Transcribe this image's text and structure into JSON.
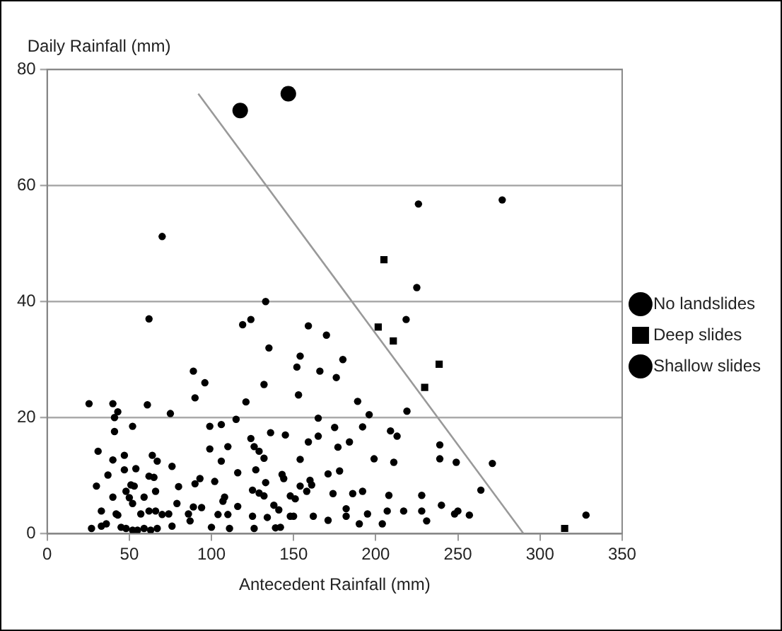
{
  "chart_data": {
    "type": "scatter",
    "xlabel": "Antecedent Rainfall (mm)",
    "ylabel": "Daily Rainfall (mm)",
    "xlim": [
      0,
      350
    ],
    "xticks": [
      0,
      50,
      100,
      150,
      200,
      250,
      300,
      350
    ],
    "ylim": [
      0,
      80
    ],
    "yticks": [
      0,
      20,
      40,
      60,
      80
    ],
    "grid": "y",
    "legend": "right",
    "series": [
      {
        "name": "No landslides",
        "color": "#000000",
        "marker": "circle",
        "x": [
          62,
          133,
          119,
          124,
          135,
          89,
          96,
          132,
          90,
          121,
          25.5,
          40,
          61,
          43,
          41,
          75,
          52,
          41,
          99,
          106,
          115,
          136,
          145,
          31,
          99,
          110,
          124,
          126,
          129,
          132,
          40,
          47,
          64,
          67,
          106,
          154,
          76,
          127,
          37,
          47,
          54,
          62,
          65,
          90,
          93,
          116,
          143,
          144,
          30,
          51,
          53,
          80,
          102,
          133,
          40,
          48,
          50,
          59,
          66,
          108,
          107,
          125,
          129,
          132,
          154,
          151,
          33,
          42,
          52,
          57,
          62,
          66,
          70,
          74,
          79,
          86,
          89,
          94,
          104,
          110,
          116,
          125,
          134,
          138,
          141,
          150,
          27,
          33,
          36,
          43,
          45,
          48,
          52,
          55,
          59,
          63,
          67,
          76,
          87,
          100,
          111,
          126,
          142,
          225,
          218.5,
          159,
          170,
          154,
          152,
          166,
          176,
          180,
          153,
          189,
          219,
          196,
          192,
          165,
          165,
          175,
          159,
          209,
          213,
          184,
          177,
          239,
          199,
          211,
          239,
          249,
          271,
          171,
          178,
          160,
          161,
          148,
          158,
          174,
          186,
          192,
          208,
          228,
          264,
          139,
          148,
          162,
          171,
          182,
          182,
          190,
          195,
          204,
          207,
          217,
          228,
          231,
          240,
          248,
          250,
          257,
          328,
          70,
          226,
          277
        ],
        "values": [
          37,
          40,
          36,
          36.9,
          32,
          28,
          26,
          25.7,
          23.4,
          22.7,
          22.4,
          22.4,
          22.2,
          21,
          20,
          20.7,
          18.5,
          17.6,
          18.5,
          18.8,
          19.7,
          17.4,
          17,
          14.2,
          14.6,
          15,
          16.4,
          15,
          14.2,
          13,
          12.7,
          13.5,
          13.5,
          12.5,
          12.5,
          12.8,
          11.6,
          11,
          10.1,
          11,
          11.2,
          9.9,
          9.7,
          8.6,
          9.5,
          10.5,
          10.2,
          9.5,
          8.2,
          8.4,
          8.2,
          8.1,
          9,
          8.8,
          6.3,
          7.3,
          6.2,
          6.3,
          7.3,
          6.3,
          5.6,
          7.5,
          7,
          6.5,
          8.2,
          6,
          3.9,
          3.4,
          5.2,
          3.4,
          3.9,
          3.9,
          3.3,
          3.4,
          5.2,
          3.4,
          4.6,
          4.5,
          3.3,
          3.3,
          4.7,
          3,
          2.8,
          4.9,
          4.1,
          3,
          0.9,
          1.3,
          1.7,
          3.2,
          1.1,
          0.9,
          0.6,
          0.6,
          0.9,
          0.6,
          0.9,
          1.3,
          2.2,
          1.1,
          0.9,
          0.9,
          1.1,
          42.4,
          36.9,
          35.8,
          34.2,
          30.6,
          28.7,
          28,
          26.9,
          30,
          23.9,
          22.8,
          21.1,
          20.5,
          18.4,
          19.9,
          16.8,
          18.3,
          15.8,
          17.7,
          16.8,
          15.8,
          14.9,
          15.3,
          12.9,
          12.3,
          12.9,
          12.3,
          12.1,
          10.3,
          10.8,
          9.2,
          8.4,
          6.5,
          7.3,
          6.9,
          6.9,
          7.3,
          6.6,
          6.6,
          7.5,
          1,
          3,
          3,
          2.3,
          4.3,
          3,
          1.7,
          3.4,
          1.7,
          3.9,
          3.9,
          3.9,
          2.2,
          4.9,
          3.4,
          3.9,
          3.2,
          3.2,
          51.2,
          56.8,
          57.5
        ]
      },
      {
        "name": "Deep slides",
        "color": "#000000",
        "marker": "square",
        "x": [
          205,
          201.5,
          210.7,
          238.6,
          229.8,
          315
        ],
        "values": [
          47.2,
          35.6,
          33.2,
          29.2,
          25.2,
          0.9
        ]
      },
      {
        "name": "Shallow slides",
        "color": "#000000",
        "marker": "circle",
        "x": [
          117.5,
          146.8
        ],
        "values": [
          72.9,
          75.8
        ]
      },
      {
        "type": "line",
        "color": "#999999",
        "x": [
          92,
          290
        ],
        "values": [
          75.8,
          0
        ]
      }
    ]
  }
}
